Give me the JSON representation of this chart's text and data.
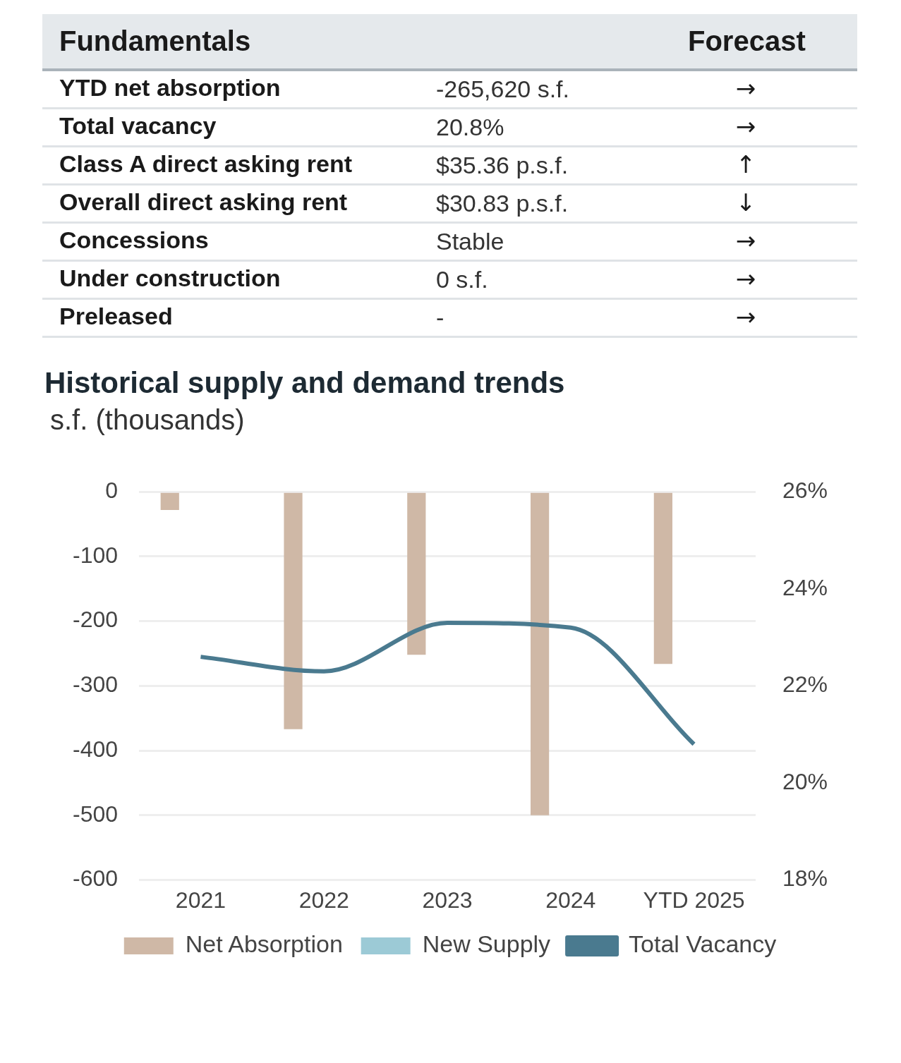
{
  "chart_data": [
    {
      "type": "other",
      "title": "Fundamentals",
      "annotations": [
        "Forecast",
        "YTD net absorption",
        "-265,620 s.f.",
        "→",
        "Total vacancy",
        "20.8%",
        "→",
        "Class A direct asking rent",
        "$35.36 p.s.f.",
        "↑",
        "Overall direct asking rent",
        "$30.83 p.s.f.",
        "↓",
        "Concessions",
        "Stable",
        "→",
        "Under construction",
        "0 s.f.",
        "→",
        "Preleased",
        "-",
        "→"
      ]
    },
    {
      "type": "bar",
      "title": "Historical supply and demand trends",
      "ylabel": "s.f. (thousands)",
      "categories": [
        "2021",
        "2022",
        "2023",
        "2024",
        "YTD 2025"
      ],
      "series": [
        {
          "name": "Net Absorption",
          "color": "#cfb8a6",
          "values": [
            -28,
            -367,
            -252,
            -500,
            -266
          ]
        },
        {
          "name": "New Supply",
          "color": "#9ccad6",
          "values": [
            null,
            null,
            null,
            null,
            null
          ]
        },
        {
          "name": "Total Vacancy",
          "type": "line",
          "axis": "y2",
          "color": "#4a7a8f",
          "values": [
            22.6,
            22.3,
            23.3,
            23.2,
            20.8
          ]
        }
      ],
      "ylim": [
        -600,
        0
      ],
      "yticks": [
        -600,
        -500,
        -400,
        -300,
        -200,
        -100,
        0
      ],
      "y2lim": [
        18,
        26
      ],
      "y2ticks": [
        {
          "value": 18,
          "label": "18%"
        },
        {
          "value": 20,
          "label": "20%"
        },
        {
          "value": 22,
          "label": "22%"
        },
        {
          "value": 24,
          "label": "24%"
        },
        {
          "value": 26,
          "label": "26%"
        }
      ],
      "grid": "y",
      "legend": "bottom",
      "marker": "none",
      "line_style": "solid"
    }
  ]
}
